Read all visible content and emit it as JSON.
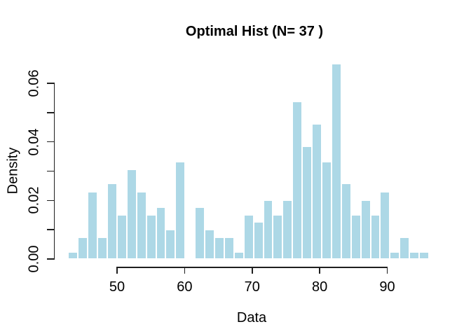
{
  "figure": {
    "title": "Optimal Hist (N= 37 )",
    "x_axis_label": "Data",
    "y_axis_label": "Density"
  },
  "chart_data": {
    "type": "bar",
    "subtype": "histogram",
    "title": "Optimal Hist (N= 37 )",
    "xlabel": "Data",
    "ylabel": "Density",
    "n_bins": 37,
    "bin_start": 42.77,
    "bin_width": 1.4435,
    "densities": [
      0.0023,
      0.0075,
      0.0229,
      0.0075,
      0.0257,
      0.0151,
      0.0305,
      0.0229,
      0.0151,
      0.0177,
      0.0101,
      0.0333,
      0,
      0.0177,
      0.0101,
      0.0075,
      0.0075,
      0.0023,
      0.0151,
      0.0127,
      0.0202,
      0.0151,
      0.0202,
      0.0538,
      0.0385,
      0.0461,
      0.0333,
      0.0667,
      0.0257,
      0.0151,
      0.0202,
      0.0151,
      0.0229,
      0.0023,
      0.0075,
      0.0023,
      0.0023
    ],
    "x_tick_values": [
      50,
      60,
      70,
      80,
      90
    ],
    "x_tick_labels": [
      "50",
      "60",
      "70",
      "80",
      "90"
    ],
    "y_tick_values": [
      0,
      0.01,
      0.02,
      0.03,
      0.04,
      0.05,
      0.06
    ],
    "y_tick_labels": [
      "0.00",
      "",
      "0.02",
      "",
      "0.04",
      "",
      "0.06"
    ],
    "xlim": [
      50,
      90
    ],
    "ylim": [
      0,
      0.0667
    ],
    "grid": false,
    "legend": null,
    "bar_color": "#ADD8E6",
    "bar_border_color": "#FFFFFF",
    "axis_color": "#1F1F1F",
    "background_color": "#FFFFFF"
  }
}
